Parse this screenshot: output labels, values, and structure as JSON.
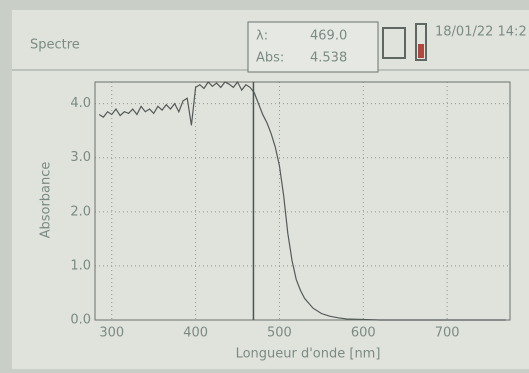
{
  "header": {
    "title": "Spectre",
    "lambda_label": "λ:",
    "lambda_value": "469.0",
    "abs_label": "Abs:",
    "abs_value": "4.538",
    "datetime": "18/01/22 14:2"
  },
  "chart_data": {
    "type": "line",
    "xlabel": "Longueur d'onde [nm]",
    "ylabel": "Absorbance",
    "x": [
      285,
      290,
      295,
      300,
      305,
      310,
      315,
      320,
      325,
      330,
      335,
      340,
      345,
      350,
      355,
      360,
      365,
      370,
      375,
      380,
      385,
      390,
      395,
      400,
      405,
      410,
      415,
      420,
      425,
      430,
      435,
      440,
      445,
      450,
      455,
      460,
      465,
      470,
      475,
      480,
      485,
      490,
      495,
      500,
      505,
      510,
      515,
      520,
      525,
      530,
      540,
      550,
      560,
      570,
      580,
      600,
      620,
      650,
      680,
      710,
      740,
      770
    ],
    "series": [
      {
        "name": "Absorbance",
        "color": "#555a58",
        "values": [
          3.8,
          3.75,
          3.85,
          3.8,
          3.9,
          3.78,
          3.85,
          3.82,
          3.9,
          3.8,
          3.95,
          3.85,
          3.9,
          3.82,
          3.95,
          3.88,
          3.98,
          3.9,
          4.0,
          3.85,
          4.05,
          4.1,
          3.6,
          4.3,
          4.35,
          4.28,
          4.4,
          4.32,
          4.38,
          4.3,
          4.4,
          4.36,
          4.3,
          4.4,
          4.25,
          4.35,
          4.3,
          4.2,
          4.0,
          3.8,
          3.65,
          3.45,
          3.2,
          2.85,
          2.3,
          1.6,
          1.1,
          0.75,
          0.55,
          0.4,
          0.22,
          0.12,
          0.07,
          0.04,
          0.02,
          0.01,
          0.0,
          0.0,
          0.0,
          0.0,
          0.0,
          0.0
        ]
      }
    ],
    "cursor": 469.0,
    "xlim": [
      280,
      775
    ],
    "ylim": [
      0,
      4.4
    ],
    "xticks": [
      300,
      400,
      500,
      600,
      700
    ],
    "yticks": [
      {
        "value": 0,
        "label": "0.0"
      },
      {
        "value": 1,
        "label": "1.0"
      },
      {
        "value": 2,
        "label": "2.0"
      },
      {
        "value": 3,
        "label": "3.0"
      },
      {
        "value": 4,
        "label": "4.0"
      }
    ],
    "grid": true
  }
}
